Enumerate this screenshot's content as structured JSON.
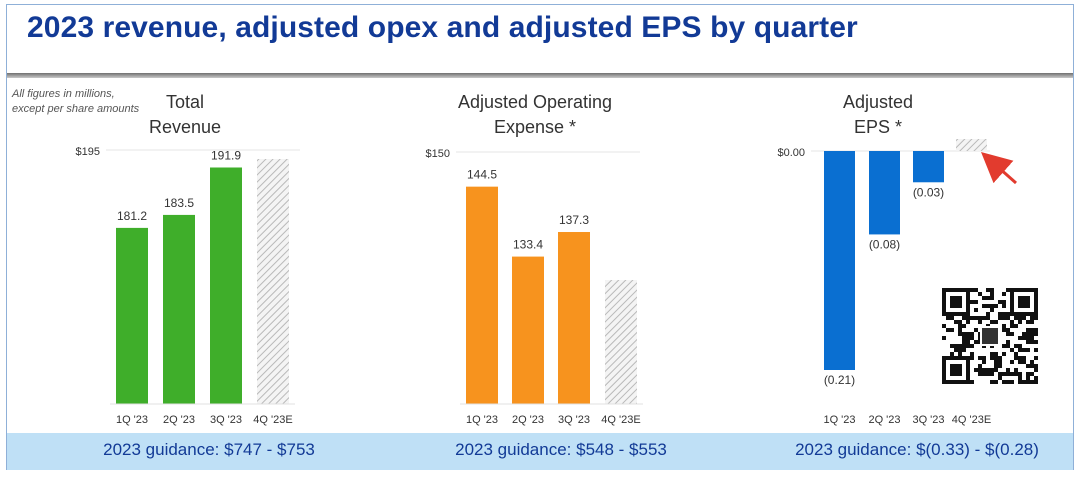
{
  "title": "2023 revenue, adjusted opex and adjusted EPS by quarter",
  "note": [
    "All figures in millions,",
    "except per share amounts"
  ],
  "guidance": [
    "2023 guidance: $747 - $753",
    "2023 guidance: $548 - $553",
    "2023 guidance: $(0.33) - $(0.28)"
  ],
  "colors": {
    "title": "#123a96",
    "revenue": "#3fae2a",
    "opex": "#f7931e",
    "eps": "#0a6fd1",
    "estimate": "#cfcfcf",
    "footer": "#bfe0f6",
    "arrow": "#e23b2e"
  },
  "chart_data": [
    {
      "type": "bar",
      "title": [
        "Total",
        "Revenue"
      ],
      "categories": [
        "1Q '23",
        "2Q '23",
        "3Q '23",
        "4Q '23E"
      ],
      "values": [
        181.2,
        183.5,
        191.9,
        null
      ],
      "data_labels": [
        "181.2",
        "183.5",
        "191.9",
        ""
      ],
      "estimate_category": "4Q '23E",
      "ytick_label": "$195",
      "ylim": [
        150,
        195
      ],
      "grid": false
    },
    {
      "type": "bar",
      "title": [
        "Adjusted Operating",
        "Expense *"
      ],
      "categories": [
        "1Q '23",
        "2Q '23",
        "3Q '23",
        "4Q '23E"
      ],
      "values": [
        144.5,
        133.4,
        137.3,
        null
      ],
      "data_labels": [
        "144.5",
        "133.4",
        "137.3",
        ""
      ],
      "estimate_category": "4Q '23E",
      "ytick_label": "$150",
      "ylim": [
        110,
        150
      ],
      "grid": false
    },
    {
      "type": "bar",
      "title": [
        "Adjusted",
        "EPS *"
      ],
      "categories": [
        "1Q '23",
        "2Q '23",
        "3Q '23",
        "4Q '23E"
      ],
      "values": [
        -0.21,
        -0.08,
        -0.03,
        null
      ],
      "data_labels": [
        "(0.21)",
        "(0.08)",
        "(0.03)",
        ""
      ],
      "estimate_category": "4Q '23E",
      "ytick_label": "$0.00",
      "ylim": [
        -0.21,
        0
      ],
      "grid": false
    }
  ]
}
